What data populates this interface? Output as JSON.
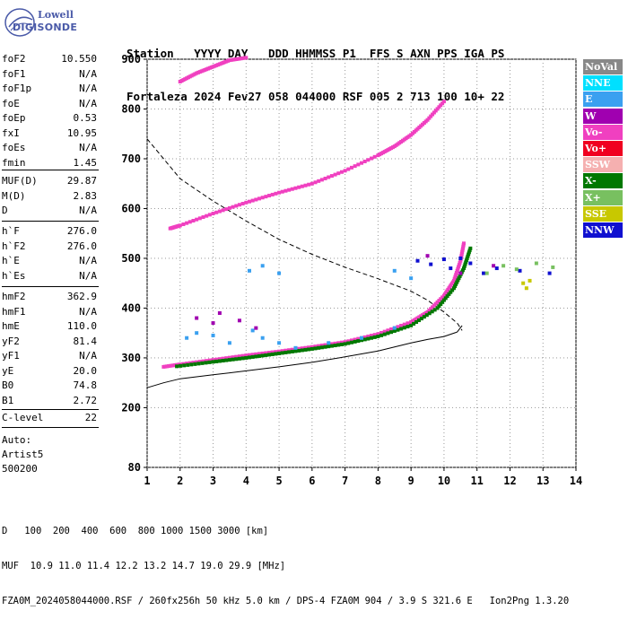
{
  "logo": {
    "brand_top": "Lowell",
    "brand_main": "DIGISONDE"
  },
  "header": {
    "line1": "Station   YYYY DAY   DDD HHMMSS P1  FFS S AXN PPS IGA PS",
    "line2": "Fortaleza 2024 Fev27 058 044000 RSF 005 2 713 100 10+ 22"
  },
  "params": {
    "group1": [
      {
        "label": "foF2",
        "value": "10.550"
      },
      {
        "label": "foF1",
        "value": "N/A"
      },
      {
        "label": "foF1p",
        "value": "N/A"
      },
      {
        "label": "foE",
        "value": "N/A"
      },
      {
        "label": "foEp",
        "value": "0.53"
      },
      {
        "label": "fxI",
        "value": "10.95"
      },
      {
        "label": "foEs",
        "value": "N/A"
      },
      {
        "label": "fmin",
        "value": "1.45"
      }
    ],
    "group2": [
      {
        "label": "MUF(D)",
        "value": "29.87"
      },
      {
        "label": "M(D)",
        "value": "2.83"
      },
      {
        "label": "D",
        "value": "N/A"
      }
    ],
    "group3": [
      {
        "label": "h`F",
        "value": "276.0"
      },
      {
        "label": "h`F2",
        "value": "276.0"
      },
      {
        "label": "h`E",
        "value": "N/A"
      },
      {
        "label": "h`Es",
        "value": "N/A"
      }
    ],
    "group4": [
      {
        "label": "hmF2",
        "value": "362.9"
      },
      {
        "label": "hmF1",
        "value": "N/A"
      },
      {
        "label": "hmE",
        "value": "110.0"
      },
      {
        "label": "yF2",
        "value": "81.4"
      },
      {
        "label": "yF1",
        "value": "N/A"
      },
      {
        "label": "yE",
        "value": "20.0"
      },
      {
        "label": "B0",
        "value": "74.8"
      },
      {
        "label": "B1",
        "value": "2.72"
      }
    ],
    "clevel": {
      "label": "C-level",
      "value": "22"
    },
    "auto": [
      "Auto:",
      "Artist5",
      "500200"
    ]
  },
  "legend": [
    {
      "label": "NoVal",
      "color": "#888888"
    },
    {
      "label": "NNE",
      "color": "#00e0ff"
    },
    {
      "label": "E",
      "color": "#3aa0f0"
    },
    {
      "label": "W",
      "color": "#a000b0"
    },
    {
      "label": "Vo-",
      "color": "#f040c0"
    },
    {
      "label": "Vo+",
      "color": "#f00020"
    },
    {
      "label": "SSW",
      "color": "#f5b0b0"
    },
    {
      "label": "X-",
      "color": "#007800"
    },
    {
      "label": "X+",
      "color": "#78c060"
    },
    {
      "label": "SSE",
      "color": "#c8c800"
    },
    {
      "label": "NNW",
      "color": "#1010d0"
    }
  ],
  "chart_data": {
    "type": "scatter",
    "xlim": [
      1,
      14
    ],
    "ylim": [
      80,
      900
    ],
    "x_ticks": [
      1,
      2,
      3,
      4,
      5,
      6,
      7,
      8,
      9,
      10,
      11,
      12,
      13,
      14
    ],
    "y_ticks": [
      80,
      200,
      300,
      400,
      500,
      600,
      700,
      800,
      900
    ],
    "grid": true,
    "series": [
      {
        "name": "O-trace (Vo-)",
        "color": "#f040c0",
        "points": [
          [
            1.5,
            282
          ],
          [
            2,
            287
          ],
          [
            3,
            296
          ],
          [
            4,
            305
          ],
          [
            5,
            313
          ],
          [
            6,
            322
          ],
          [
            7,
            332
          ],
          [
            8,
            348
          ],
          [
            9,
            372
          ],
          [
            9.5,
            392
          ],
          [
            10,
            425
          ],
          [
            10.3,
            455
          ],
          [
            10.5,
            495
          ],
          [
            10.6,
            530
          ]
        ]
      },
      {
        "name": "X-trace (X-)",
        "color": "#007800",
        "points": [
          [
            1.9,
            283
          ],
          [
            3,
            292
          ],
          [
            4,
            300
          ],
          [
            5,
            309
          ],
          [
            6,
            318
          ],
          [
            7,
            328
          ],
          [
            8,
            343
          ],
          [
            9,
            365
          ],
          [
            9.8,
            400
          ],
          [
            10.3,
            440
          ],
          [
            10.6,
            480
          ],
          [
            10.8,
            520
          ]
        ]
      },
      {
        "name": "Second-hop F (Vo-)",
        "color": "#f040c0",
        "points": [
          [
            1.7,
            560
          ],
          [
            2,
            566
          ],
          [
            3,
            590
          ],
          [
            4,
            612
          ],
          [
            5,
            632
          ],
          [
            6,
            650
          ],
          [
            7,
            676
          ],
          [
            8,
            707
          ],
          [
            8.5,
            725
          ],
          [
            9,
            748
          ],
          [
            9.5,
            778
          ],
          [
            10,
            815
          ]
        ]
      },
      {
        "name": "Third-hop F (Vo-)",
        "color": "#f040c0",
        "points": [
          [
            2,
            855
          ],
          [
            2.5,
            872
          ],
          [
            3,
            885
          ],
          [
            3.5,
            898
          ],
          [
            4,
            903
          ]
        ]
      },
      {
        "name": "Spread-F (E)",
        "color": "#3aa0f0",
        "points": [
          [
            2.2,
            340
          ],
          [
            2.5,
            350
          ],
          [
            3,
            345
          ],
          [
            3.5,
            330
          ],
          [
            4.2,
            355
          ],
          [
            4.5,
            340
          ],
          [
            5,
            330
          ],
          [
            5.5,
            320
          ],
          [
            6.5,
            330
          ],
          [
            7.5,
            340
          ],
          [
            8.5,
            360
          ],
          [
            4.1,
            475
          ],
          [
            4.5,
            485
          ],
          [
            5,
            470
          ],
          [
            8.5,
            475
          ],
          [
            9,
            460
          ]
        ]
      },
      {
        "name": "Oblique (NNW)",
        "color": "#1010d0",
        "points": [
          [
            9.2,
            495
          ],
          [
            9.6,
            488
          ],
          [
            10,
            498
          ],
          [
            10.2,
            480
          ],
          [
            10.5,
            500
          ],
          [
            10.8,
            490
          ],
          [
            11.2,
            470
          ],
          [
            11.6,
            480
          ],
          [
            12.3,
            475
          ],
          [
            13.2,
            470
          ]
        ]
      },
      {
        "name": "Oblique (W)",
        "color": "#a000b0",
        "points": [
          [
            2.5,
            380
          ],
          [
            3,
            370
          ],
          [
            3.2,
            390
          ],
          [
            3.8,
            375
          ],
          [
            4.3,
            360
          ],
          [
            9.5,
            505
          ],
          [
            10.5,
            470
          ],
          [
            11.5,
            485
          ]
        ]
      },
      {
        "name": "Oblique (X+)",
        "color": "#78c060",
        "points": [
          [
            11.3,
            470
          ],
          [
            11.8,
            485
          ],
          [
            12.2,
            478
          ],
          [
            12.8,
            490
          ],
          [
            13.3,
            482
          ]
        ]
      },
      {
        "name": "Oblique (SSE)",
        "color": "#c8c800",
        "points": [
          [
            12.4,
            450
          ],
          [
            12.5,
            440
          ],
          [
            12.6,
            455
          ]
        ]
      }
    ],
    "profile_dashed": [
      [
        1,
        740
      ],
      [
        1.5,
        700
      ],
      [
        2,
        660
      ],
      [
        3,
        615
      ],
      [
        4,
        575
      ],
      [
        5,
        538
      ],
      [
        6,
        508
      ],
      [
        7,
        482
      ],
      [
        8,
        459
      ],
      [
        9,
        434
      ],
      [
        9.5,
        416
      ],
      [
        10,
        392
      ],
      [
        10.4,
        370
      ],
      [
        10.55,
        355
      ]
    ],
    "profile_solid": [
      [
        1,
        240
      ],
      [
        1.5,
        250
      ],
      [
        2,
        258
      ],
      [
        3,
        266
      ],
      [
        4,
        274
      ],
      [
        5,
        282
      ],
      [
        6,
        291
      ],
      [
        7,
        302
      ],
      [
        8,
        314
      ],
      [
        9,
        330
      ],
      [
        9.5,
        337
      ],
      [
        10,
        343
      ],
      [
        10.4,
        352
      ],
      [
        10.55,
        365
      ]
    ],
    "footer_d_label": "D",
    "footer_d": "100  200  400  600  800 1000 1500 3000 [km]",
    "footer_muf_label": "MUF",
    "footer_muf": "10.9 11.0 11.4 12.2 13.2 14.7 19.0 29.9 [MHz]"
  },
  "footer": {
    "info": "FZA0M_2024058044000.RSF / 260fx256h 50 kHz 5.0 km / DPS-4 FZA0M 904 / 3.9 S 321.6 E   Ion2Png 1.3.20"
  }
}
